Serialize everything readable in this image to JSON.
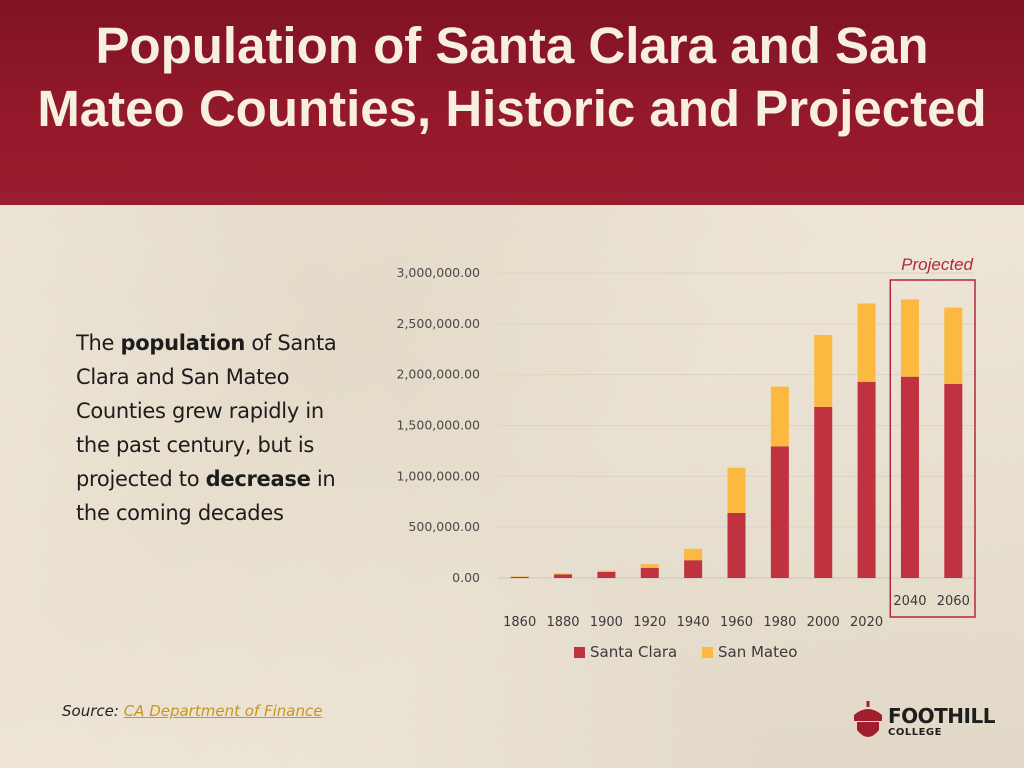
{
  "slide": {
    "title": "Population of Santa Clara and San Mateo Counties, Historic and Projected",
    "body": {
      "t1": "The ",
      "b1": "population",
      "t2": " of Santa Clara and San Mateo Counties grew rapidly in the past century, but is projected to ",
      "b2": "decrease",
      "t3": " in the coming decades"
    },
    "source": {
      "label": "Source:",
      "link_text": "CA Department of Finance"
    },
    "logo": {
      "name": "FOOTHILL",
      "sub": "COLLEGE"
    }
  },
  "chart_data": {
    "type": "bar",
    "stacked": true,
    "categories": [
      "1860",
      "1880",
      "1900",
      "1920",
      "1940",
      "1960",
      "1980",
      "2000",
      "2020",
      "2040",
      "2060"
    ],
    "series": [
      {
        "name": "Santa Clara",
        "color": "#c0323f",
        "values": [
          11900,
          35000,
          60000,
          100000,
          175000,
          640000,
          1295000,
          1683000,
          1930000,
          1980000,
          1910000
        ]
      },
      {
        "name": "San Mateo",
        "color": "#fbb940",
        "values": [
          3200,
          8700,
          12100,
          36000,
          111800,
          444400,
          587300,
          707200,
          770000,
          760000,
          750000
        ]
      }
    ],
    "ylim": [
      0,
      3000000
    ],
    "yticks": [
      "0.00",
      "500,000.00",
      "1,000,000.00",
      "1,500,000.00",
      "2,000,000.00",
      "2,500,000.00",
      "3,000,000.00"
    ],
    "grid": true,
    "legend": "bottom",
    "annotation": {
      "label": "Projected",
      "categories": [
        "2040",
        "2060"
      ],
      "color": "#b4283a"
    }
  }
}
